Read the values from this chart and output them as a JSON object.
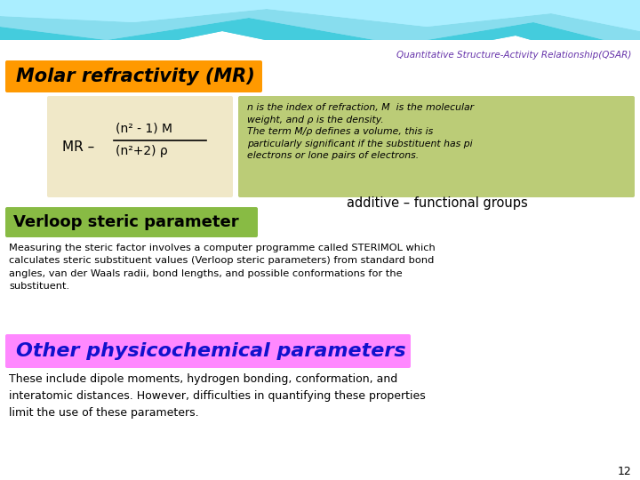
{
  "title": "Quantitative Structure-Activity Relationship(QSAR)",
  "title_color": "#6633AA",
  "title_fontsize": 7.5,
  "bg_color": "#FFFFFF",
  "molar_box_color": "#FF9900",
  "molar_text": "Molar refractivity (MR)",
  "formula_box_color": "#F0E8C8",
  "green_box_color": "#BBCC77",
  "green_box_text": "n is the index of refraction, M  is the molecular\nweight, and ρ is the density.\nThe term M/ρ defines a volume, this is\nparticularly significant if the substituent has pi\nelectrons or lone pairs of electrons.",
  "additive_text": "additive – functional groups",
  "verloop_box_color": "#88BB44",
  "verloop_text": "Verloop steric parameter",
  "sterimol_text": "Measuring the steric factor involves a computer programme called STERIMOL which\ncalculates steric substituent values (Verloop steric parameters) from standard bond\nangles, van der Waals radii, bond lengths, and possible conformations for the\nsubstituent.",
  "other_box_color": "#FF88FF",
  "other_text": "Other physicochemical parameters",
  "other_text_color": "#1111CC",
  "last_text": "These include dipole moments, hydrogen bonding, conformation, and\ninteratomic distances. However, difficulties in quantifying these properties\nlimit the use of these parameters.",
  "page_number": "12",
  "wave_color1": "#44CCDD",
  "wave_color2": "#88DDEE",
  "wave_color3": "#AAEEFF"
}
